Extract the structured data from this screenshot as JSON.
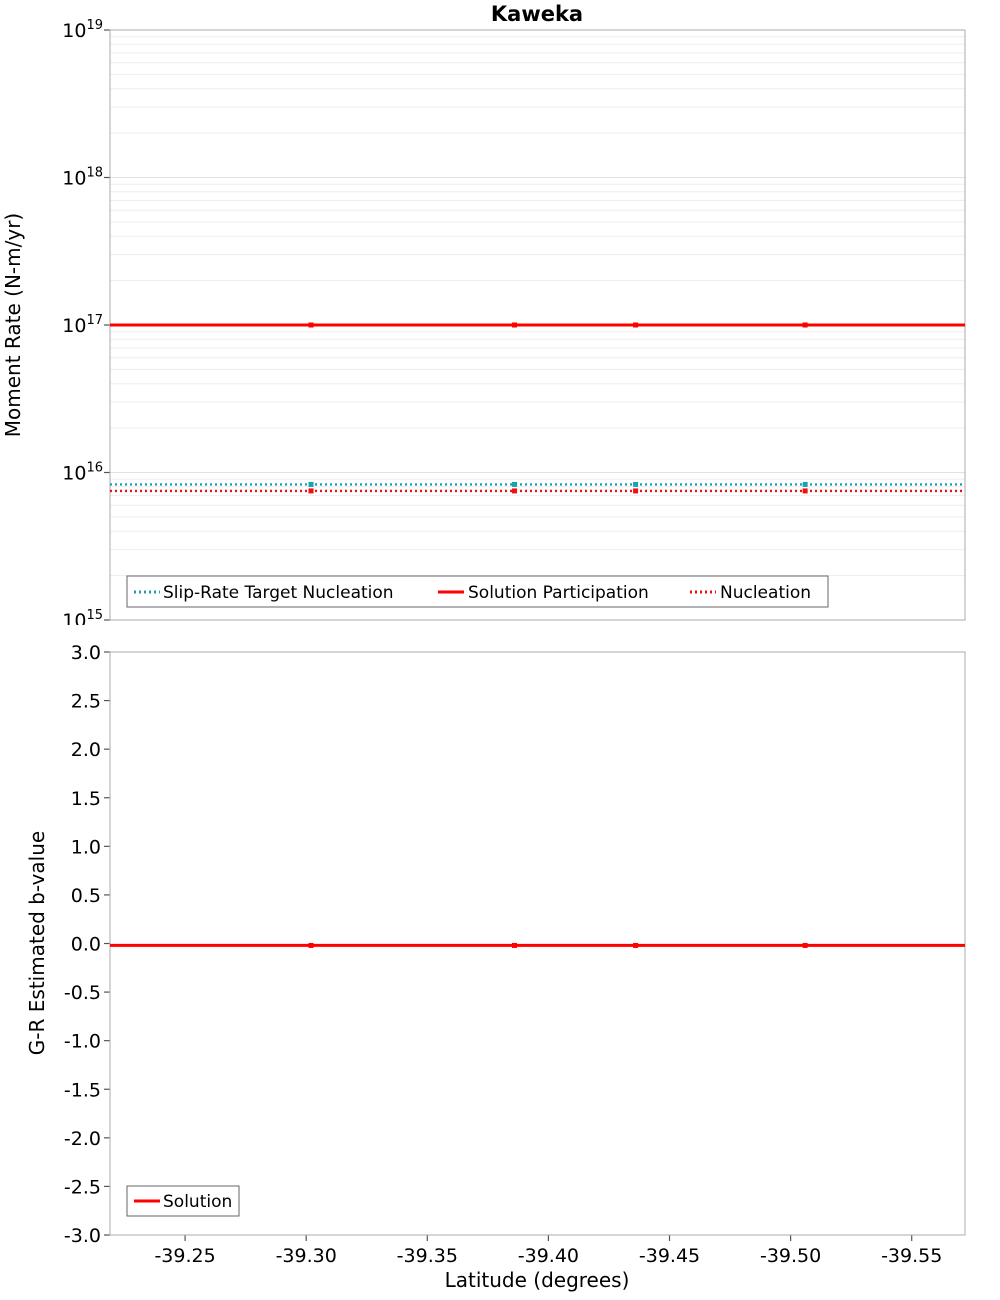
{
  "figure": {
    "background": "#ffffff",
    "border_color": "#ababab",
    "minor_grid_color": "#ededed",
    "major_grid_color": "#e2e2e2",
    "tick_color": "#555555"
  },
  "chart_data": [
    {
      "type": "line",
      "title": "Kaweka",
      "ylabel": "Moment Rate (N-m/yr)",
      "yscale": "log",
      "ylim": [
        1000000000000000.0,
        1e+19
      ],
      "ylim_exp": [
        15,
        19
      ],
      "xlim": [
        -39.219,
        -39.572
      ],
      "x_reversed": true,
      "grid": true,
      "legend_position": "bottom-left-inside",
      "x": [
        -39.219,
        -39.302,
        -39.386,
        -39.436,
        -39.506,
        -39.572
      ],
      "series": [
        {
          "name": "Slip-Rate Target Nucleation",
          "color": "#1BA3AD",
          "style": "dotted",
          "values": [
            8300000000000000.0,
            8300000000000000.0,
            8300000000000000.0,
            8300000000000000.0,
            8300000000000000.0,
            8300000000000000.0
          ]
        },
        {
          "name": "Solution Participation",
          "color": "#FF0000",
          "style": "solid",
          "values": [
            1e+17,
            1e+17,
            1e+17,
            1e+17,
            1e+17,
            1e+17
          ]
        },
        {
          "name": "Nucleation",
          "color": "#EE1111",
          "style": "dotted",
          "values": [
            7500000000000000.0,
            7500000000000000.0,
            7500000000000000.0,
            7500000000000000.0,
            7500000000000000.0,
            7500000000000000.0
          ]
        }
      ]
    },
    {
      "type": "line",
      "title": "",
      "ylabel": "G-R Estimated b-value",
      "xlabel": "Latitude (degrees)",
      "yscale": "linear",
      "ylim": [
        -3.0,
        3.0
      ],
      "ytick_step": 0.5,
      "xlim": [
        -39.219,
        -39.572
      ],
      "x_reversed": true,
      "grid": false,
      "legend_position": "bottom-left-inside",
      "xticks": [
        -39.25,
        -39.3,
        -39.35,
        -39.4,
        -39.45,
        -39.5,
        -39.55
      ],
      "x": [
        -39.219,
        -39.302,
        -39.386,
        -39.436,
        -39.506,
        -39.572
      ],
      "series": [
        {
          "name": "Solution",
          "color": "#FF0000",
          "style": "solid",
          "values": [
            -0.02,
            -0.02,
            -0.02,
            -0.02,
            -0.02,
            -0.02
          ]
        }
      ]
    }
  ]
}
